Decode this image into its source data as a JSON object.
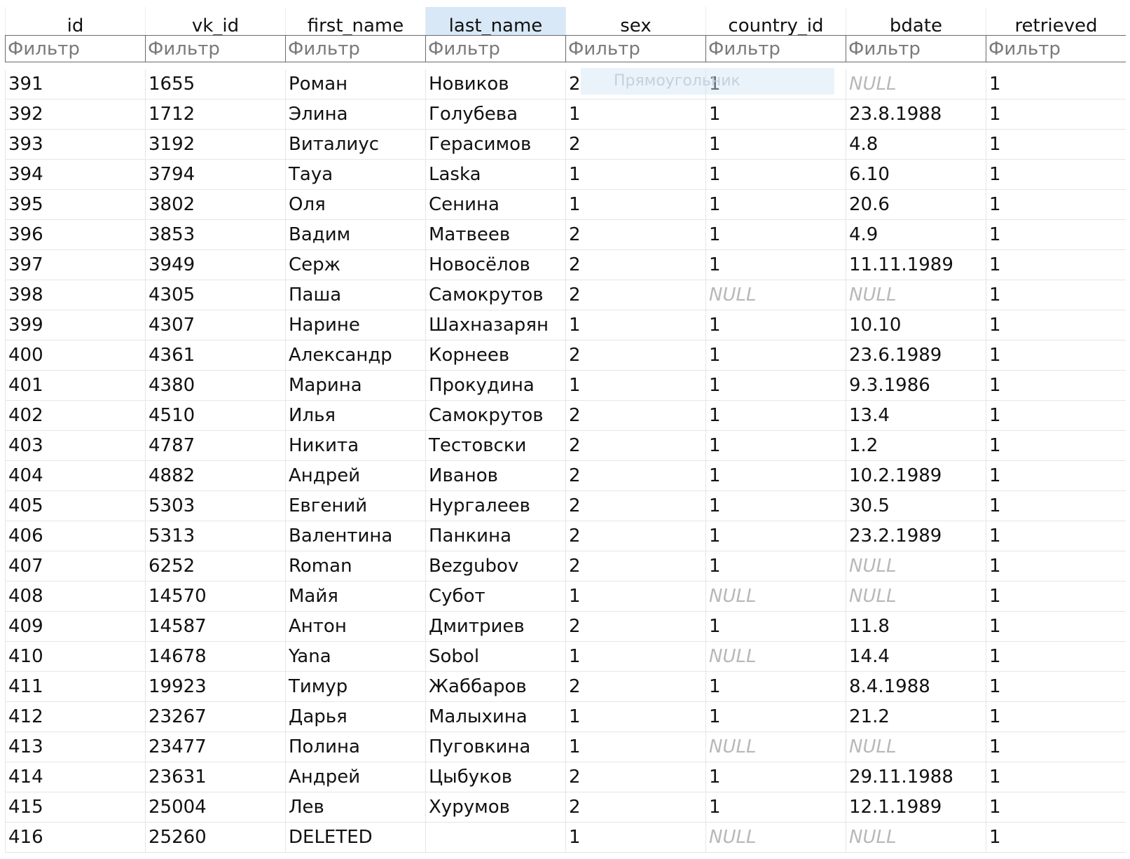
{
  "columns": [
    {
      "name": "id"
    },
    {
      "name": "vk_id"
    },
    {
      "name": "first_name"
    },
    {
      "name": "last_name"
    },
    {
      "name": "sex"
    },
    {
      "name": "country_id"
    },
    {
      "name": "bdate"
    },
    {
      "name": "retrieved"
    }
  ],
  "selected_column": "last_name",
  "filter_placeholder": "Фильтр",
  "null_text": "NULL",
  "overlay_label": "Прямоугольник",
  "rows": [
    [
      "391",
      "1655",
      "Роман",
      "Новиков",
      "2",
      "1",
      "NULL",
      "1"
    ],
    [
      "392",
      "1712",
      "Элина",
      "Голубева",
      "1",
      "1",
      "23.8.1988",
      "1"
    ],
    [
      "393",
      "3192",
      "Виталиус",
      "Герасимов",
      "2",
      "1",
      "4.8",
      "1"
    ],
    [
      "394",
      "3794",
      "Тауа",
      "Laska",
      "1",
      "1",
      "6.10",
      "1"
    ],
    [
      "395",
      "3802",
      "Оля",
      "Сенина",
      "1",
      "1",
      "20.6",
      "1"
    ],
    [
      "396",
      "3853",
      "Вадим",
      "Матвеев",
      "2",
      "1",
      "4.9",
      "1"
    ],
    [
      "397",
      "3949",
      "Серж",
      "Новосёлов",
      "2",
      "1",
      "11.11.1989",
      "1"
    ],
    [
      "398",
      "4305",
      "Паша",
      "Самокрутов",
      "2",
      "NULL",
      "NULL",
      "1"
    ],
    [
      "399",
      "4307",
      "Нарине",
      "Шахназарян",
      "1",
      "1",
      "10.10",
      "1"
    ],
    [
      "400",
      "4361",
      "Александр",
      "Корнеев",
      "2",
      "1",
      "23.6.1989",
      "1"
    ],
    [
      "401",
      "4380",
      "Марина",
      "Прокудина",
      "1",
      "1",
      "9.3.1986",
      "1"
    ],
    [
      "402",
      "4510",
      "Илья",
      "Самокрутов",
      "2",
      "1",
      "13.4",
      "1"
    ],
    [
      "403",
      "4787",
      "Никита",
      "Тестовски",
      "2",
      "1",
      "1.2",
      "1"
    ],
    [
      "404",
      "4882",
      "Андрей",
      "Иванов",
      "2",
      "1",
      "10.2.1989",
      "1"
    ],
    [
      "405",
      "5303",
      "Евгений",
      "Нургалеев",
      "2",
      "1",
      "30.5",
      "1"
    ],
    [
      "406",
      "5313",
      "Валентина",
      "Панкина",
      "2",
      "1",
      "23.2.1989",
      "1"
    ],
    [
      "407",
      "6252",
      "Roman",
      "Bezgubov",
      "2",
      "1",
      "NULL",
      "1"
    ],
    [
      "408",
      "14570",
      "Майя",
      "Субот",
      "1",
      "NULL",
      "NULL",
      "1"
    ],
    [
      "409",
      "14587",
      "Антон",
      "Дмитриев",
      "2",
      "1",
      "11.8",
      "1"
    ],
    [
      "410",
      "14678",
      "Yana",
      "Sobol",
      "1",
      "NULL",
      "14.4",
      "1"
    ],
    [
      "411",
      "19923",
      "Тимур",
      "Жаббаров",
      "2",
      "1",
      "8.4.1988",
      "1"
    ],
    [
      "412",
      "23267",
      "Дарья",
      "Малыхина",
      "1",
      "1",
      "21.2",
      "1"
    ],
    [
      "413",
      "23477",
      "Полина",
      "Пуговкина",
      "1",
      "NULL",
      "NULL",
      "1"
    ],
    [
      "414",
      "23631",
      "Андрей",
      "Цыбуков",
      "2",
      "1",
      "29.11.1988",
      "1"
    ],
    [
      "415",
      "25004",
      "Лев",
      "Хурумов",
      "2",
      "1",
      "12.1.1989",
      "1"
    ],
    [
      "416",
      "25260",
      "DELETED",
      "",
      "1",
      "NULL",
      "NULL",
      "1"
    ]
  ]
}
